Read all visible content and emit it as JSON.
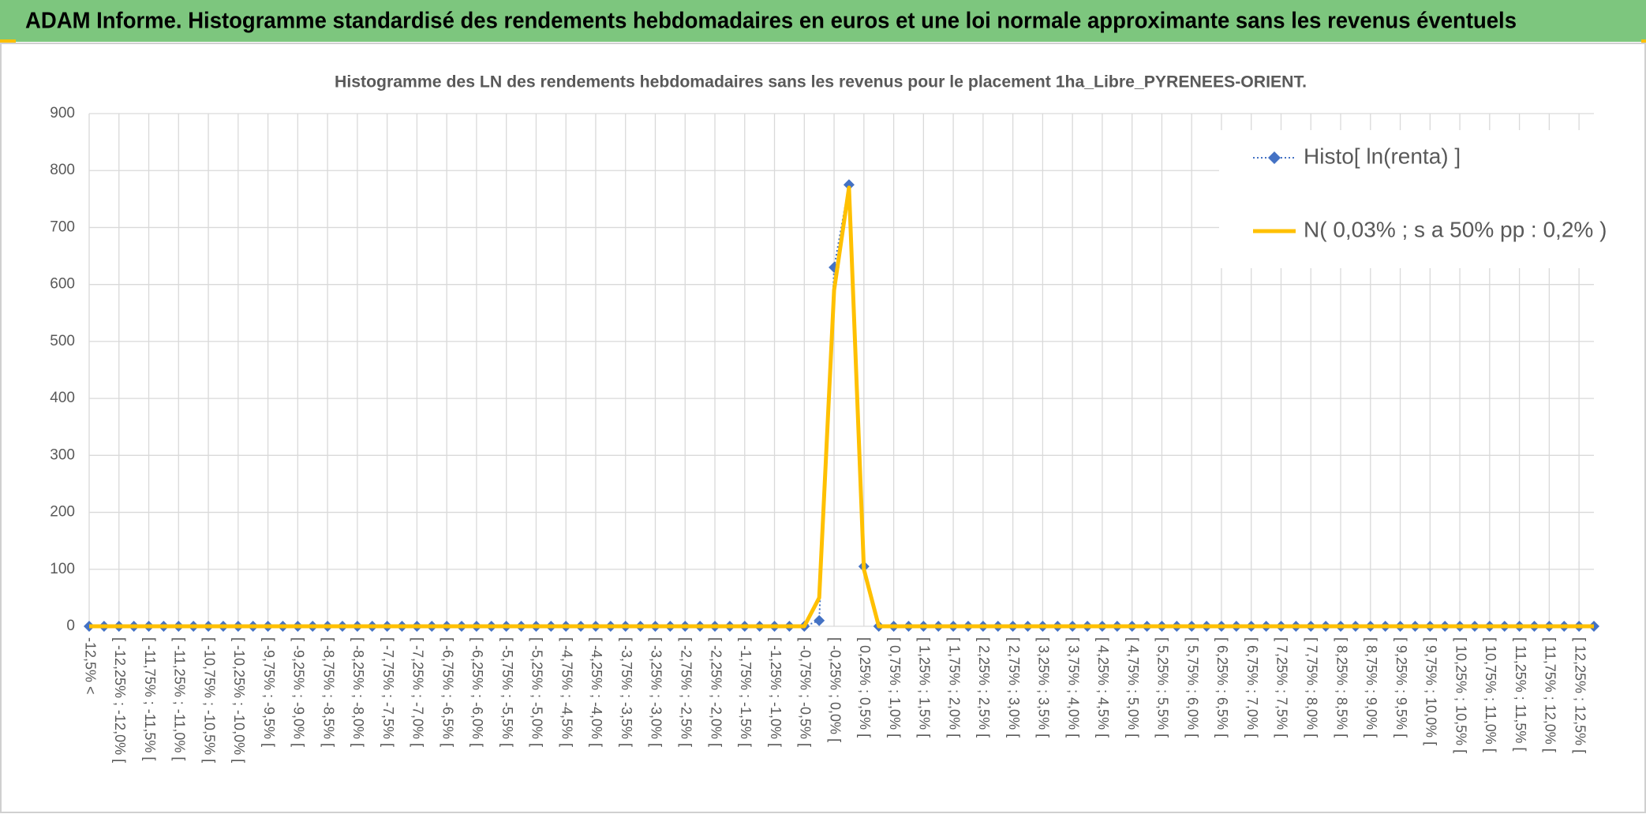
{
  "header": {
    "title": "ADAM Informe. Histogramme standardisé des rendements hebdomadaires en euros et une loi normale approximante sans les revenus éventuels"
  },
  "chart_data": {
    "type": "line",
    "title": "Histogramme des LN des rendements hebdomadaires sans les revenus pour le placement 1ha_Libre_PYRENEES-ORIENT.",
    "categories": [
      "-12,5% <",
      null,
      "[ -12,25% ; -12,0% [",
      null,
      "[ -11,75% ; -11,5% [",
      null,
      "[ -11,25% ; -11,0% [",
      null,
      "[ -10,75% ; -10,5% [",
      null,
      "[ -10,25% ; -10,0% [",
      null,
      "[ -9,75% ; -9,5% [",
      null,
      "[ -9,25% ; -9,0% [",
      null,
      "[ -8,75% ; -8,5% [",
      null,
      "[ -8,25% ; -8,0% [",
      null,
      "[ -7,75% ; -7,5% [",
      null,
      "[ -7,25% ; -7,0% [",
      null,
      "[ -6,75% ; -6,5% [",
      null,
      "[ -6,25% ; -6,0% [",
      null,
      "[ -5,75% ; -5,5% [",
      null,
      "[ -5,25% ; -5,0% [",
      null,
      "[ -4,75% ; -4,5% [",
      null,
      "[ -4,25% ; -4,0% [",
      null,
      "[ -3,75% ; -3,5% [",
      null,
      "[ -3,25% ; -3,0% [",
      null,
      "[ -2,75% ; -2,5% [",
      null,
      "[ -2,25% ; -2,0% [",
      null,
      "[ -1,75% ; -1,5% [",
      null,
      "[ -1,25% ; -1,0% [",
      null,
      "[ -0,75% ; -0,5% [",
      null,
      "[ -0,25% ; 0,0% [",
      null,
      "[ 0,25% ; 0,5% [",
      null,
      "[ 0,75% ; 1,0% [",
      null,
      "[ 1,25% ; 1,5% [",
      null,
      "[ 1,75% ; 2,0% [",
      null,
      "[ 2,25% ; 2,5% [",
      null,
      "[ 2,75% ; 3,0% [",
      null,
      "[ 3,25% ; 3,5% [",
      null,
      "[ 3,75% ; 4,0% [",
      null,
      "[ 4,25% ; 4,5% [",
      null,
      "[ 4,75% ; 5,0% [",
      null,
      "[ 5,25% ; 5,5% [",
      null,
      "[ 5,75% ; 6,0% [",
      null,
      "[ 6,25% ; 6,5% [",
      null,
      "[ 6,75% ; 7,0% [",
      null,
      "[ 7,25% ; 7,5% [",
      null,
      "[ 7,75% ; 8,0% [",
      null,
      "[ 8,25% ; 8,5% [",
      null,
      "[ 8,75% ; 9,0% [",
      null,
      "[ 9,25% ; 9,5% [",
      null,
      "[ 9,75% ; 10,0% [",
      null,
      "[ 10,25% ; 10,5% [",
      null,
      "[ 10,75% ; 11,0% [",
      null,
      "[ 11,25% ; 11,5% [",
      null,
      "[ 11,75% ; 12,0% [",
      null,
      "[ 12,25% ; 12,5% [",
      null
    ],
    "series": [
      {
        "name": "Histo[ ln(renta) ]",
        "color": "#4472c4",
        "values": [
          0,
          0,
          0,
          0,
          0,
          0,
          0,
          0,
          0,
          0,
          0,
          0,
          0,
          0,
          0,
          0,
          0,
          0,
          0,
          0,
          0,
          0,
          0,
          0,
          0,
          0,
          0,
          0,
          0,
          0,
          0,
          0,
          0,
          0,
          0,
          0,
          0,
          0,
          0,
          0,
          0,
          0,
          0,
          0,
          0,
          0,
          0,
          0,
          0,
          10,
          630,
          775,
          105,
          0,
          0,
          0,
          0,
          0,
          0,
          0,
          0,
          0,
          0,
          0,
          0,
          0,
          0,
          0,
          0,
          0,
          0,
          0,
          0,
          0,
          0,
          0,
          0,
          0,
          0,
          0,
          0,
          0,
          0,
          0,
          0,
          0,
          0,
          0,
          0,
          0,
          0,
          0,
          0,
          0,
          0,
          0,
          0,
          0,
          0,
          0,
          0,
          0
        ]
      },
      {
        "name": "N( 0,03% ; s a 50% pp : 0,2% )",
        "color": "#ffc000",
        "values": [
          0,
          0,
          0,
          0,
          0,
          0,
          0,
          0,
          0,
          0,
          0,
          0,
          0,
          0,
          0,
          0,
          0,
          0,
          0,
          0,
          0,
          0,
          0,
          0,
          0,
          0,
          0,
          0,
          0,
          0,
          0,
          0,
          0,
          0,
          0,
          0,
          0,
          0,
          0,
          0,
          0,
          0,
          0,
          0,
          0,
          0,
          0,
          0,
          0,
          50,
          590,
          770,
          100,
          0,
          0,
          0,
          0,
          0,
          0,
          0,
          0,
          0,
          0,
          0,
          0,
          0,
          0,
          0,
          0,
          0,
          0,
          0,
          0,
          0,
          0,
          0,
          0,
          0,
          0,
          0,
          0,
          0,
          0,
          0,
          0,
          0,
          0,
          0,
          0,
          0,
          0,
          0,
          0,
          0,
          0,
          0,
          0,
          0,
          0,
          0,
          0,
          0
        ]
      }
    ],
    "ylim": [
      0,
      900
    ],
    "yticks": [
      0,
      100,
      200,
      300,
      400,
      500,
      600,
      700,
      800,
      900
    ],
    "grid": true,
    "legend": "upper right"
  }
}
